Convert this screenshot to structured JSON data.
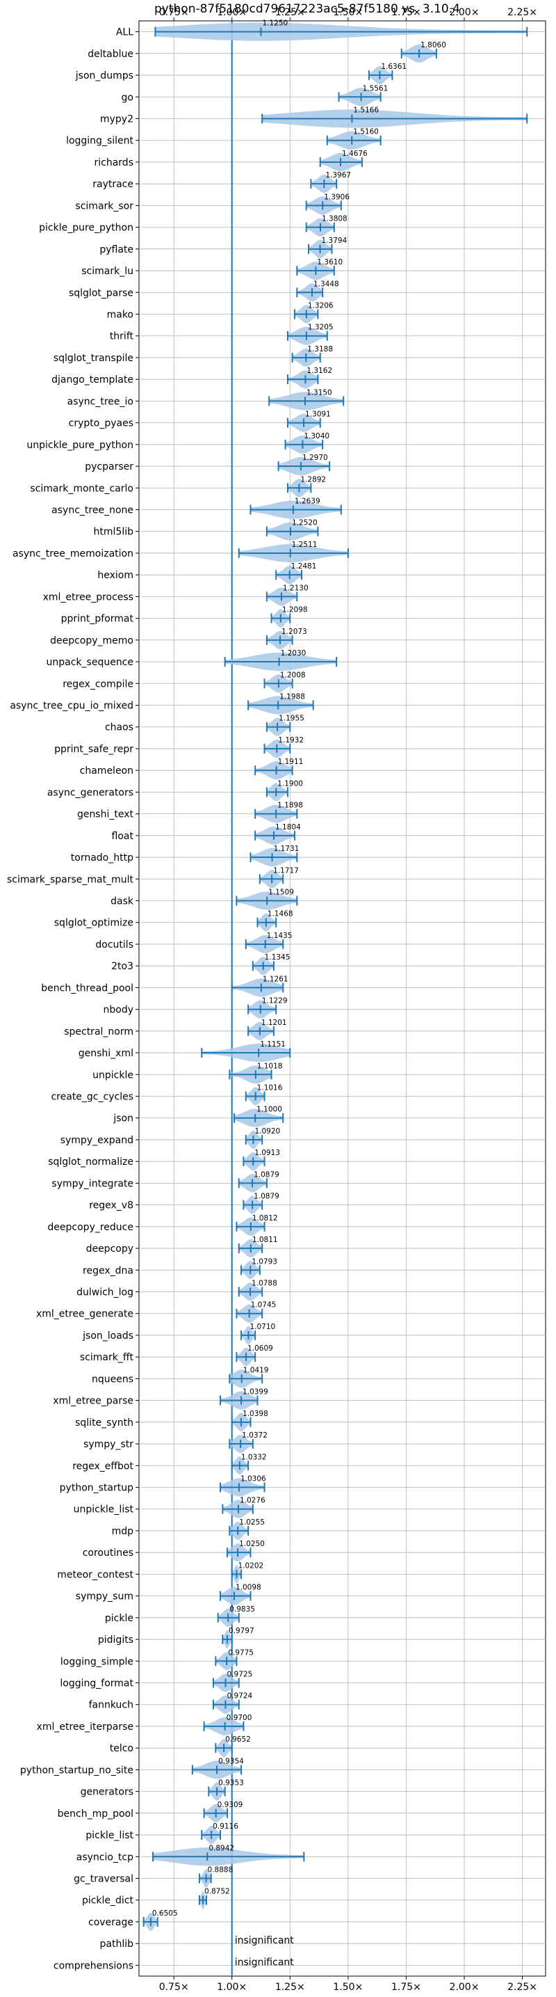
{
  "chart_data": {
    "type": "violin",
    "title": "python-87f5180cd79617223ac5-87f5180 vs. 3.10.4",
    "xlim": [
      0.6,
      2.35
    ],
    "xticks": [
      {
        "value": 0.75,
        "label": "0.75×"
      },
      {
        "value": 1.0,
        "label": "1.00×"
      },
      {
        "value": 1.25,
        "label": "1.25×"
      },
      {
        "value": 1.5,
        "label": "1.50×"
      },
      {
        "value": 1.75,
        "label": "1.75×"
      },
      {
        "value": 2.0,
        "label": "2.00×"
      },
      {
        "value": 2.25,
        "label": "2.25×"
      }
    ],
    "reference_line": 1.0,
    "grid": true,
    "colors": {
      "violin": "#a8c8e6",
      "line": "#1f77b4"
    },
    "benchmarks": [
      {
        "name": "ALL",
        "value": 1.125,
        "label": "1.1250",
        "min": 0.67,
        "max": 2.27
      },
      {
        "name": "deltablue",
        "value": 1.806,
        "label": "1.8060",
        "min": 1.73,
        "max": 1.88
      },
      {
        "name": "json_dumps",
        "value": 1.6361,
        "label": "1.6361",
        "min": 1.59,
        "max": 1.69
      },
      {
        "name": "go",
        "value": 1.5561,
        "label": "1.5561",
        "min": 1.46,
        "max": 1.64
      },
      {
        "name": "mypy2",
        "value": 1.5166,
        "label": "1.5166",
        "min": 1.13,
        "max": 2.27
      },
      {
        "name": "logging_silent",
        "value": 1.516,
        "label": "1.5160",
        "min": 1.41,
        "max": 1.64
      },
      {
        "name": "richards",
        "value": 1.4676,
        "label": "1.4676",
        "min": 1.38,
        "max": 1.56
      },
      {
        "name": "raytrace",
        "value": 1.3967,
        "label": "1.3967",
        "min": 1.34,
        "max": 1.45
      },
      {
        "name": "scimark_sor",
        "value": 1.3906,
        "label": "1.3906",
        "min": 1.32,
        "max": 1.47
      },
      {
        "name": "pickle_pure_python",
        "value": 1.3808,
        "label": "1.3808",
        "min": 1.32,
        "max": 1.44
      },
      {
        "name": "pyflate",
        "value": 1.3794,
        "label": "1.3794",
        "min": 1.33,
        "max": 1.43
      },
      {
        "name": "scimark_lu",
        "value": 1.361,
        "label": "1.3610",
        "min": 1.28,
        "max": 1.44
      },
      {
        "name": "sqlglot_parse",
        "value": 1.3448,
        "label": "1.3448",
        "min": 1.28,
        "max": 1.39
      },
      {
        "name": "mako",
        "value": 1.3206,
        "label": "1.3206",
        "min": 1.27,
        "max": 1.37
      },
      {
        "name": "thrift",
        "value": 1.3205,
        "label": "1.3205",
        "min": 1.24,
        "max": 1.41
      },
      {
        "name": "sqlglot_transpile",
        "value": 1.3188,
        "label": "1.3188",
        "min": 1.26,
        "max": 1.38
      },
      {
        "name": "django_template",
        "value": 1.3162,
        "label": "1.3162",
        "min": 1.24,
        "max": 1.37
      },
      {
        "name": "async_tree_io",
        "value": 1.315,
        "label": "1.3150",
        "min": 1.16,
        "max": 1.48
      },
      {
        "name": "crypto_pyaes",
        "value": 1.3091,
        "label": "1.3091",
        "min": 1.24,
        "max": 1.38
      },
      {
        "name": "unpickle_pure_python",
        "value": 1.304,
        "label": "1.3040",
        "min": 1.23,
        "max": 1.39
      },
      {
        "name": "pycparser",
        "value": 1.297,
        "label": "1.2970",
        "min": 1.2,
        "max": 1.42
      },
      {
        "name": "scimark_monte_carlo",
        "value": 1.2892,
        "label": "1.2892",
        "min": 1.24,
        "max": 1.34
      },
      {
        "name": "async_tree_none",
        "value": 1.2639,
        "label": "1.2639",
        "min": 1.08,
        "max": 1.47
      },
      {
        "name": "html5lib",
        "value": 1.252,
        "label": "1.2520",
        "min": 1.15,
        "max": 1.37
      },
      {
        "name": "async_tree_memoization",
        "value": 1.2511,
        "label": "1.2511",
        "min": 1.03,
        "max": 1.5
      },
      {
        "name": "hexiom",
        "value": 1.2481,
        "label": "1.2481",
        "min": 1.19,
        "max": 1.3
      },
      {
        "name": "xml_etree_process",
        "value": 1.213,
        "label": "1.2130",
        "min": 1.15,
        "max": 1.28
      },
      {
        "name": "pprint_pformat",
        "value": 1.2098,
        "label": "1.2098",
        "min": 1.17,
        "max": 1.25
      },
      {
        "name": "deepcopy_memo",
        "value": 1.2073,
        "label": "1.2073",
        "min": 1.15,
        "max": 1.26
      },
      {
        "name": "unpack_sequence",
        "value": 1.203,
        "label": "1.2030",
        "min": 0.97,
        "max": 1.45
      },
      {
        "name": "regex_compile",
        "value": 1.2008,
        "label": "1.2008",
        "min": 1.14,
        "max": 1.26
      },
      {
        "name": "async_tree_cpu_io_mixed",
        "value": 1.1988,
        "label": "1.1988",
        "min": 1.07,
        "max": 1.35
      },
      {
        "name": "chaos",
        "value": 1.1955,
        "label": "1.1955",
        "min": 1.15,
        "max": 1.25
      },
      {
        "name": "pprint_safe_repr",
        "value": 1.1932,
        "label": "1.1932",
        "min": 1.14,
        "max": 1.25
      },
      {
        "name": "chameleon",
        "value": 1.1911,
        "label": "1.1911",
        "min": 1.1,
        "max": 1.26
      },
      {
        "name": "async_generators",
        "value": 1.19,
        "label": "1.1900",
        "min": 1.15,
        "max": 1.24
      },
      {
        "name": "genshi_text",
        "value": 1.1898,
        "label": "1.1898",
        "min": 1.1,
        "max": 1.28
      },
      {
        "name": "float",
        "value": 1.1804,
        "label": "1.1804",
        "min": 1.1,
        "max": 1.27
      },
      {
        "name": "tornado_http",
        "value": 1.1731,
        "label": "1.1731",
        "min": 1.08,
        "max": 1.28
      },
      {
        "name": "scimark_sparse_mat_mult",
        "value": 1.1717,
        "label": "1.1717",
        "min": 1.12,
        "max": 1.22
      },
      {
        "name": "dask",
        "value": 1.1509,
        "label": "1.1509",
        "min": 1.02,
        "max": 1.28
      },
      {
        "name": "sqlglot_optimize",
        "value": 1.1468,
        "label": "1.1468",
        "min": 1.11,
        "max": 1.19
      },
      {
        "name": "docutils",
        "value": 1.1435,
        "label": "1.1435",
        "min": 1.06,
        "max": 1.22
      },
      {
        "name": "2to3",
        "value": 1.1345,
        "label": "1.1345",
        "min": 1.09,
        "max": 1.18
      },
      {
        "name": "bench_thread_pool",
        "value": 1.1261,
        "label": "1.1261",
        "min": 1.0,
        "max": 1.22
      },
      {
        "name": "nbody",
        "value": 1.1229,
        "label": "1.1229",
        "min": 1.07,
        "max": 1.19
      },
      {
        "name": "spectral_norm",
        "value": 1.1201,
        "label": "1.1201",
        "min": 1.07,
        "max": 1.18
      },
      {
        "name": "genshi_xml",
        "value": 1.1151,
        "label": "1.1151",
        "min": 0.87,
        "max": 1.25
      },
      {
        "name": "unpickle",
        "value": 1.1018,
        "label": "1.1018",
        "min": 0.99,
        "max": 1.17
      },
      {
        "name": "create_gc_cycles",
        "value": 1.1016,
        "label": "1.1016",
        "min": 1.06,
        "max": 1.14
      },
      {
        "name": "json",
        "value": 1.1,
        "label": "1.1000",
        "min": 1.01,
        "max": 1.22
      },
      {
        "name": "sympy_expand",
        "value": 1.092,
        "label": "1.0920",
        "min": 1.06,
        "max": 1.13
      },
      {
        "name": "sqlglot_normalize",
        "value": 1.0913,
        "label": "1.0913",
        "min": 1.05,
        "max": 1.14
      },
      {
        "name": "sympy_integrate",
        "value": 1.0879,
        "label": "1.0879",
        "min": 1.03,
        "max": 1.15
      },
      {
        "name": "regex_v8",
        "value": 1.0879,
        "label": "1.0879",
        "min": 1.05,
        "max": 1.13
      },
      {
        "name": "deepcopy_reduce",
        "value": 1.0812,
        "label": "1.0812",
        "min": 1.02,
        "max": 1.14
      },
      {
        "name": "deepcopy",
        "value": 1.0811,
        "label": "1.0811",
        "min": 1.03,
        "max": 1.13
      },
      {
        "name": "regex_dna",
        "value": 1.0793,
        "label": "1.0793",
        "min": 1.04,
        "max": 1.12
      },
      {
        "name": "dulwich_log",
        "value": 1.0788,
        "label": "1.0788",
        "min": 1.03,
        "max": 1.13
      },
      {
        "name": "xml_etree_generate",
        "value": 1.0745,
        "label": "1.0745",
        "min": 1.02,
        "max": 1.13
      },
      {
        "name": "json_loads",
        "value": 1.071,
        "label": "1.0710",
        "min": 1.04,
        "max": 1.1
      },
      {
        "name": "scimark_fft",
        "value": 1.0609,
        "label": "1.0609",
        "min": 1.02,
        "max": 1.1
      },
      {
        "name": "nqueens",
        "value": 1.0419,
        "label": "1.0419",
        "min": 0.99,
        "max": 1.13
      },
      {
        "name": "xml_etree_parse",
        "value": 1.0399,
        "label": "1.0399",
        "min": 0.95,
        "max": 1.11
      },
      {
        "name": "sqlite_synth",
        "value": 1.0398,
        "label": "1.0398",
        "min": 1.0,
        "max": 1.08
      },
      {
        "name": "sympy_str",
        "value": 1.0372,
        "label": "1.0372",
        "min": 0.99,
        "max": 1.09
      },
      {
        "name": "regex_effbot",
        "value": 1.0332,
        "label": "1.0332",
        "min": 1.0,
        "max": 1.07
      },
      {
        "name": "python_startup",
        "value": 1.0306,
        "label": "1.0306",
        "min": 0.95,
        "max": 1.14
      },
      {
        "name": "unpickle_list",
        "value": 1.0276,
        "label": "1.0276",
        "min": 0.96,
        "max": 1.09
      },
      {
        "name": "mdp",
        "value": 1.0255,
        "label": "1.0255",
        "min": 0.99,
        "max": 1.07
      },
      {
        "name": "coroutines",
        "value": 1.025,
        "label": "1.0250",
        "min": 0.98,
        "max": 1.08
      },
      {
        "name": "meteor_contest",
        "value": 1.0202,
        "label": "1.0202",
        "min": 1.0,
        "max": 1.04
      },
      {
        "name": "sympy_sum",
        "value": 1.0098,
        "label": "1.0098",
        "min": 0.95,
        "max": 1.08
      },
      {
        "name": "pickle",
        "value": 0.9835,
        "label": "0.9835",
        "min": 0.94,
        "max": 1.03
      },
      {
        "name": "pidigits",
        "value": 0.9797,
        "label": "0.9797",
        "min": 0.96,
        "max": 1.0
      },
      {
        "name": "logging_simple",
        "value": 0.9775,
        "label": "0.9775",
        "min": 0.93,
        "max": 1.02
      },
      {
        "name": "logging_format",
        "value": 0.9725,
        "label": "0.9725",
        "min": 0.92,
        "max": 1.03
      },
      {
        "name": "fannkuch",
        "value": 0.9724,
        "label": "0.9724",
        "min": 0.92,
        "max": 1.03
      },
      {
        "name": "xml_etree_iterparse",
        "value": 0.97,
        "label": "0.9700",
        "min": 0.88,
        "max": 1.05
      },
      {
        "name": "telco",
        "value": 0.9652,
        "label": "0.9652",
        "min": 0.93,
        "max": 1.0
      },
      {
        "name": "python_startup_no_site",
        "value": 0.9354,
        "label": "0.9354",
        "min": 0.83,
        "max": 1.04
      },
      {
        "name": "generators",
        "value": 0.9353,
        "label": "0.9353",
        "min": 0.9,
        "max": 0.97
      },
      {
        "name": "bench_mp_pool",
        "value": 0.9309,
        "label": "0.9309",
        "min": 0.88,
        "max": 0.98
      },
      {
        "name": "pickle_list",
        "value": 0.9116,
        "label": "0.9116",
        "min": 0.87,
        "max": 0.95
      },
      {
        "name": "asyncio_tcp",
        "value": 0.8942,
        "label": "0.8942",
        "min": 0.66,
        "max": 1.31
      },
      {
        "name": "gc_traversal",
        "value": 0.8888,
        "label": "0.8888",
        "min": 0.86,
        "max": 0.91
      },
      {
        "name": "pickle_dict",
        "value": 0.8752,
        "label": "0.8752",
        "min": 0.86,
        "max": 0.89
      },
      {
        "name": "coverage",
        "value": 0.6505,
        "label": "0.6505",
        "min": 0.62,
        "max": 0.68
      },
      {
        "name": "pathlib",
        "value": null,
        "label": "insignificant",
        "min": null,
        "max": null
      },
      {
        "name": "comprehensions",
        "value": null,
        "label": "insignificant",
        "min": null,
        "max": null
      }
    ]
  }
}
